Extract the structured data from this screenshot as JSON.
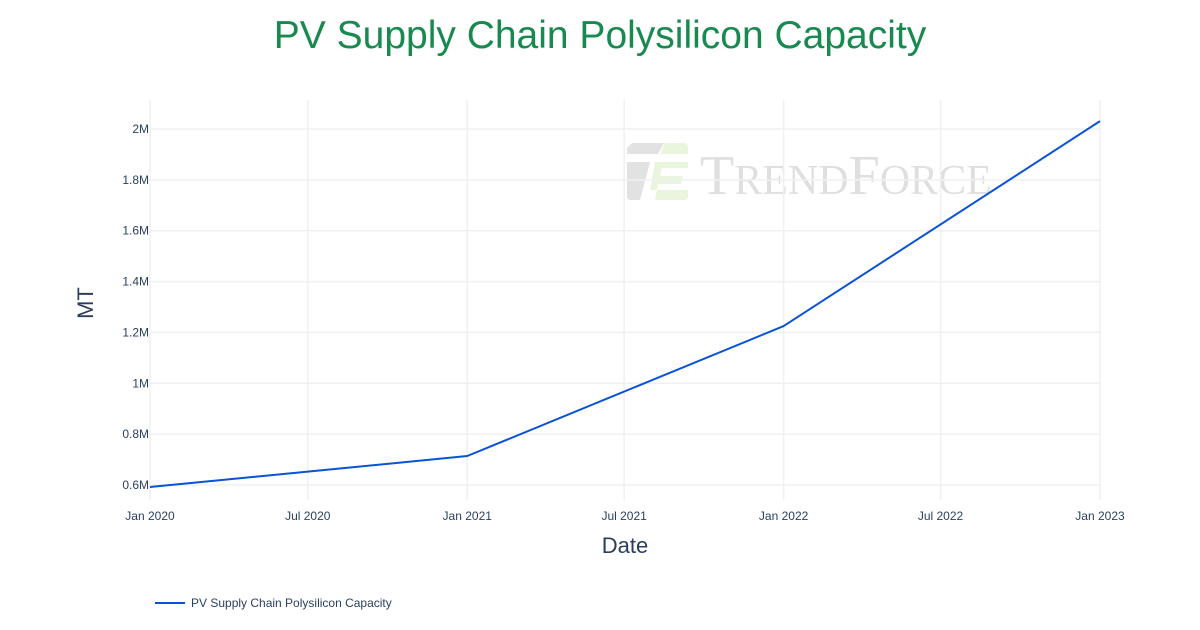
{
  "chart_data": {
    "type": "line",
    "title": "PV Supply Chain Polysilicon Capacity",
    "xlabel": "Date",
    "ylabel": "MT",
    "x": [
      "2020-01-01",
      "2021-01-01",
      "2022-01-01",
      "2023-01-01"
    ],
    "series": [
      {
        "name": "PV Supply Chain Polysilicon Capacity",
        "values": [
          592000,
          714000,
          1225000,
          2031000
        ],
        "color": "#0a53d6"
      }
    ],
    "ylim": [
      590000,
      2070000
    ],
    "xlim": [
      "2020-01-01",
      "2023-01-01"
    ],
    "y_ticks": [
      600000,
      800000,
      1000000,
      1200000,
      1400000,
      1600000,
      1800000,
      2000000
    ],
    "y_tick_labels": [
      "0.6M",
      "0.8M",
      "1M",
      "1.2M",
      "1.4M",
      "1.6M",
      "1.8M",
      "2M"
    ],
    "x_ticks": [
      "2020-01-01",
      "2020-07-01",
      "2021-01-01",
      "2021-07-01",
      "2022-01-01",
      "2022-07-01",
      "2023-01-01"
    ],
    "x_tick_labels": [
      "Jan 2020",
      "Jul 2020",
      "Jan 2021",
      "Jul 2021",
      "Jan 2022",
      "Jul 2022",
      "Jan 2023"
    ],
    "grid": true,
    "legend_position": "bottom-left",
    "watermark": "TrendForce"
  }
}
